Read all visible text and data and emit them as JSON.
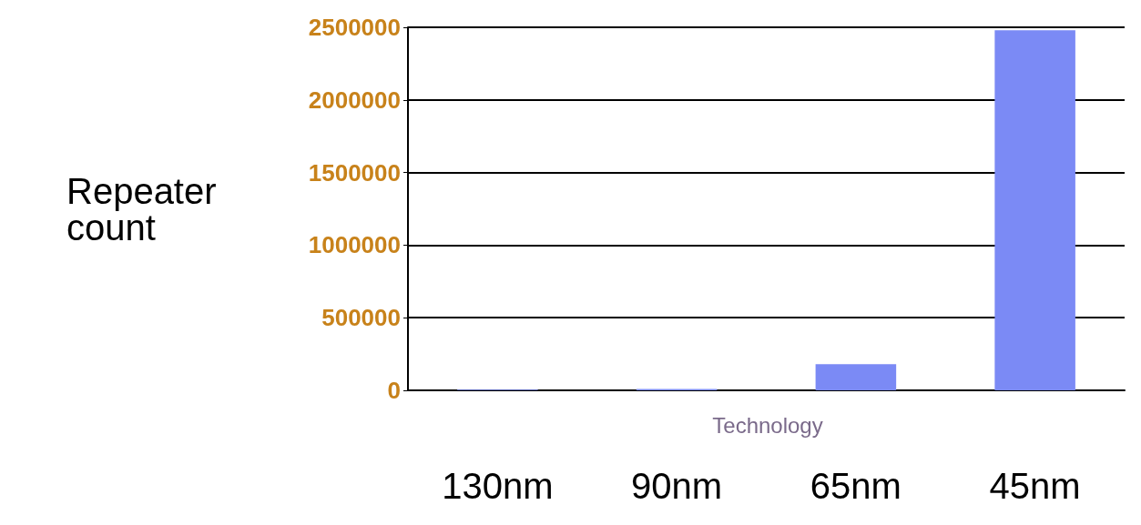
{
  "chart_data": {
    "type": "bar",
    "ylabel": "Repeater\ncount",
    "xlabel": "Technology",
    "categories": [
      "130nm",
      "90nm",
      "65nm",
      "45nm"
    ],
    "values": [
      5000,
      10000,
      180000,
      2480000
    ],
    "color": "#7b8af5",
    "ylim": [
      0,
      2500000
    ],
    "yticks": [
      0,
      500000,
      1000000,
      1500000,
      2000000,
      2500000
    ],
    "grid": "y"
  }
}
